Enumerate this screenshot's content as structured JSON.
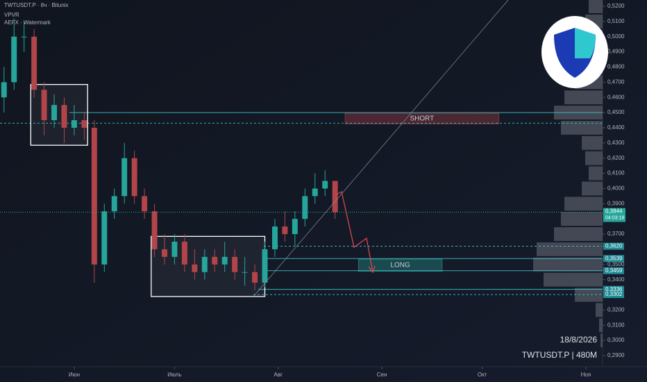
{
  "chart_data": {
    "type": "candlestick",
    "title": "TWTUSDT.P · 8ч · Bitunix",
    "indicators": [
      "VPVR",
      "AEFX · Watermark"
    ],
    "date_stamp": "18/8/2026",
    "symbol_stamp": "TWTUSDT.P | 480M",
    "x": [
      -21,
      -18,
      -15,
      -12,
      -9,
      -6,
      -3,
      0,
      3,
      6,
      9,
      12,
      15,
      18,
      21,
      24,
      27,
      30,
      33,
      36,
      39,
      42,
      45,
      48,
      51,
      54,
      57,
      60,
      63,
      66,
      69,
      72,
      75,
      78
    ],
    "open": [
      0.46,
      0.47,
      0.5,
      0.5,
      0.465,
      0.445,
      0.455,
      0.44,
      0.445,
      0.44,
      0.35,
      0.385,
      0.395,
      0.42,
      0.395,
      0.385,
      0.36,
      0.355,
      0.365,
      0.35,
      0.345,
      0.355,
      0.35,
      0.355,
      0.345,
      0.345,
      0.338,
      0.36,
      0.375,
      0.37,
      0.38,
      0.395,
      0.4,
      0.405
    ],
    "high": [
      0.48,
      0.512,
      0.51,
      0.505,
      0.47,
      0.462,
      0.46,
      0.455,
      0.45,
      0.445,
      0.39,
      0.4,
      0.43,
      0.425,
      0.4,
      0.39,
      0.37,
      0.37,
      0.37,
      0.36,
      0.36,
      0.36,
      0.365,
      0.36,
      0.355,
      0.35,
      0.365,
      0.38,
      0.385,
      0.385,
      0.4,
      0.41,
      0.412,
      0.405
    ],
    "low": [
      0.45,
      0.465,
      0.49,
      0.46,
      0.435,
      0.44,
      0.43,
      0.435,
      0.432,
      0.338,
      0.345,
      0.38,
      0.39,
      0.39,
      0.38,
      0.355,
      0.35,
      0.35,
      0.345,
      0.34,
      0.34,
      0.345,
      0.345,
      0.34,
      0.336,
      0.333,
      0.335,
      0.355,
      0.365,
      0.362,
      0.375,
      0.39,
      0.395,
      0.38
    ],
    "close": [
      0.47,
      0.5,
      0.5,
      0.465,
      0.445,
      0.455,
      0.44,
      0.445,
      0.44,
      0.35,
      0.385,
      0.395,
      0.42,
      0.395,
      0.385,
      0.36,
      0.355,
      0.365,
      0.35,
      0.345,
      0.355,
      0.35,
      0.355,
      0.345,
      0.345,
      0.338,
      0.36,
      0.375,
      0.37,
      0.38,
      0.395,
      0.4,
      0.405,
      0.3844
    ],
    "up_color": "#26a69a",
    "down_color": "#b2454a",
    "xlim": [
      -22.2,
      158
    ],
    "xticks": [
      {
        "value": 0,
        "label": "Июн"
      },
      {
        "value": 30,
        "label": "Июль"
      },
      {
        "value": 61,
        "label": "Авг"
      },
      {
        "value": 92,
        "label": "Сен"
      },
      {
        "value": 122,
        "label": "Окт"
      },
      {
        "value": 153,
        "label": "Ноя"
      }
    ],
    "ylim": [
      0.29,
      0.52
    ],
    "yticks": [
      {
        "value": 0.52,
        "label": "0,5200"
      },
      {
        "value": 0.51,
        "label": "0,5100"
      },
      {
        "value": 0.5,
        "label": "0,5000"
      },
      {
        "value": 0.49,
        "label": "0,4900"
      },
      {
        "value": 0.48,
        "label": "0,4800"
      },
      {
        "value": 0.47,
        "label": "0,4700"
      },
      {
        "value": 0.46,
        "label": "0,4600"
      },
      {
        "value": 0.45,
        "label": "0,4500"
      },
      {
        "value": 0.44,
        "label": "0,4400"
      },
      {
        "value": 0.43,
        "label": "0,4300"
      },
      {
        "value": 0.42,
        "label": "0,4200"
      },
      {
        "value": 0.41,
        "label": "0,4100"
      },
      {
        "value": 0.4,
        "label": "0,4000"
      },
      {
        "value": 0.39,
        "label": "0,3900"
      },
      {
        "value": 0.37,
        "label": "0,3700"
      },
      {
        "value": 0.35,
        "label": "0,3500"
      },
      {
        "value": 0.34,
        "label": "0,3400"
      },
      {
        "value": 0.32,
        "label": "0,3200"
      },
      {
        "value": 0.31,
        "label": "0,3100"
      },
      {
        "value": 0.3,
        "label": "0,3000"
      },
      {
        "value": 0.29,
        "label": "0,2900"
      }
    ],
    "current_price": {
      "value": 0.3844,
      "label": "0,3844",
      "timer": "04:03:18",
      "color": "#26a69a"
    },
    "levels": [
      {
        "value": 0.45,
        "style": "solid"
      },
      {
        "value": 0.443,
        "style": "dashed"
      },
      {
        "value": 0.362,
        "label": "0,3620",
        "style": "dashed"
      },
      {
        "value": 0.3539,
        "label": "0,3539",
        "style": "solid"
      },
      {
        "value": 0.3459,
        "label": "0,3459",
        "style": "solid"
      },
      {
        "value": 0.3336,
        "label": "0,3336",
        "style": "solid"
      },
      {
        "value": 0.3302,
        "label": "0,3302",
        "style": "dashed"
      }
    ],
    "boxes": [
      {
        "x": [
          -13,
          4
        ],
        "y": [
          0.4285,
          0.4685
        ]
      },
      {
        "x": [
          23,
          57
        ],
        "y": [
          0.3289,
          0.3685
        ]
      }
    ],
    "zones": [
      {
        "text": "SHORT",
        "x": [
          81,
          127
        ],
        "y": [
          0.4425,
          0.4495
        ],
        "color": "#b2454a"
      },
      {
        "text": "LONG",
        "x": [
          85,
          110
        ],
        "y": [
          0.3455,
          0.3535
        ],
        "color": "#26a69a"
      }
    ],
    "volume_profile": {
      "prices": [
        0.52,
        0.51,
        0.5,
        0.49,
        0.48,
        0.47,
        0.46,
        0.45,
        0.44,
        0.43,
        0.42,
        0.41,
        0.4,
        0.39,
        0.38,
        0.37,
        0.36,
        0.35,
        0.34,
        0.33,
        0.32,
        0.31,
        0.3
      ],
      "values": [
        20,
        25,
        35,
        45,
        50,
        40,
        55,
        70,
        60,
        30,
        25,
        20,
        30,
        55,
        60,
        70,
        95,
        100,
        85,
        40,
        10,
        5,
        3
      ],
      "xlim": [
        0,
        100
      ]
    }
  }
}
